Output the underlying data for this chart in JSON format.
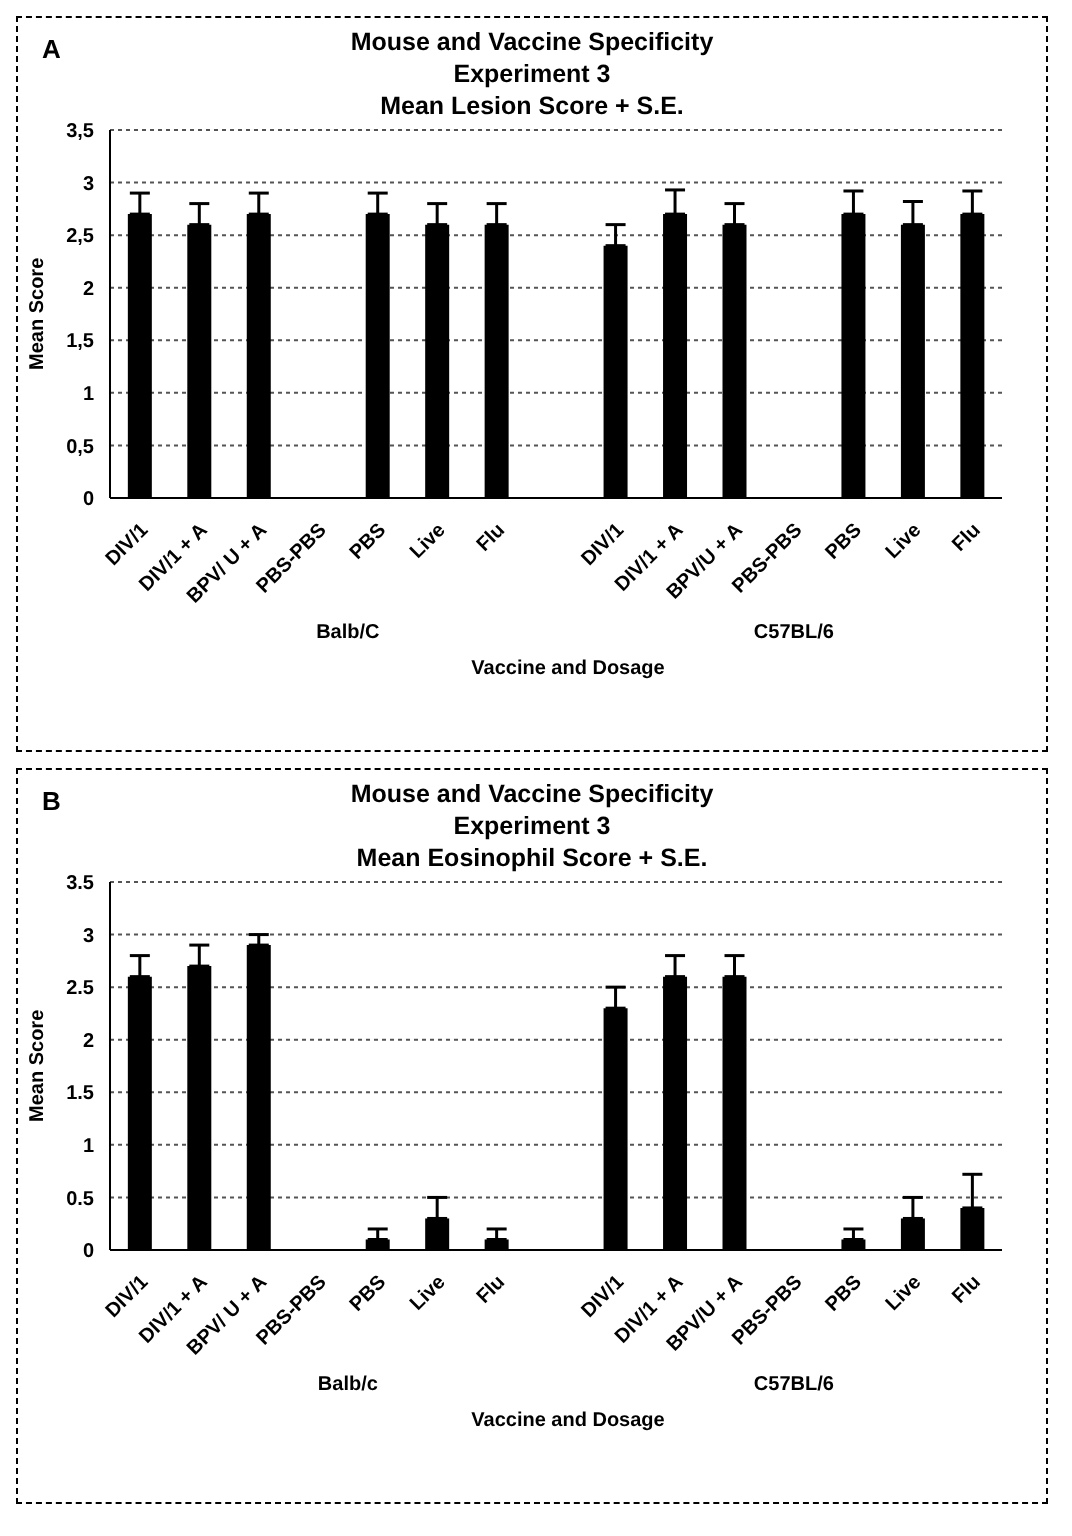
{
  "chart_data": [
    {
      "type": "bar",
      "title": "Mouse and Vaccine Specificity\nExperiment 3\nMean Lesion Score + S.E.",
      "xlabel": "Vaccine and Dosage",
      "ylabel": "Mean Score",
      "categories": [
        "DIV/1",
        "DIV/1 + A",
        "BPV/ U + A",
        "PBS-PBS",
        "PBS",
        "Live",
        "Flu",
        null,
        "DIV/1",
        "DIV/1 + A",
        "BPV/U + A",
        "PBS-PBS",
        "PBS",
        "Live",
        "Flu"
      ],
      "values": [
        2.7,
        2.6,
        2.7,
        0,
        2.7,
        2.6,
        2.6,
        null,
        2.4,
        2.7,
        2.6,
        0,
        2.7,
        2.6,
        2.7
      ],
      "errors": [
        [
          2.7,
          2.9
        ],
        [
          2.6,
          2.8
        ],
        [
          2.7,
          2.9
        ],
        null,
        [
          2.7,
          2.9
        ],
        [
          2.6,
          2.8
        ],
        [
          2.6,
          2.8
        ],
        null,
        [
          2.4,
          2.6
        ],
        [
          2.7,
          2.93
        ],
        [
          2.6,
          2.8
        ],
        null,
        [
          2.7,
          2.92
        ],
        [
          2.6,
          2.82
        ],
        [
          2.7,
          2.92
        ]
      ],
      "color": "#000000",
      "ylim": [
        0,
        3.5
      ],
      "yticks": [
        {
          "value": 0,
          "label": "0"
        },
        {
          "value": 0.5,
          "label": "0,5"
        },
        {
          "value": 1,
          "label": "1"
        },
        {
          "value": 1.5,
          "label": "1,5"
        },
        {
          "value": 2,
          "label": "2"
        },
        {
          "value": 2.5,
          "label": "2,5"
        },
        {
          "value": 3,
          "label": "3"
        },
        {
          "value": 3.5,
          "label": "3,5"
        }
      ],
      "grid": "y",
      "annotations": [
        "A",
        "Balb/C",
        "C57BL/6"
      ]
    },
    {
      "type": "bar",
      "title": "Mouse and Vaccine Specificity\nExperiment 3\nMean Eosinophil Score + S.E.",
      "xlabel": "Vaccine and Dosage",
      "ylabel": "Mean Score",
      "categories": [
        "DIV/1",
        "DIV/1 + A",
        "BPV/ U + A",
        "PBS-PBS",
        "PBS",
        "Live",
        "Flu",
        null,
        "DIV/1",
        "DIV/1 + A",
        "BPV/U + A",
        "PBS-PBS",
        "PBS",
        "Live",
        "Flu"
      ],
      "values": [
        2.6,
        2.7,
        2.9,
        0,
        0.1,
        0.3,
        0.1,
        null,
        2.3,
        2.6,
        2.6,
        0,
        0.1,
        0.3,
        0.4
      ],
      "errors": [
        [
          2.6,
          2.8
        ],
        [
          2.7,
          2.9
        ],
        [
          2.9,
          3.0
        ],
        null,
        [
          0.1,
          0.2
        ],
        [
          0.3,
          0.5
        ],
        [
          0.1,
          0.2
        ],
        null,
        [
          2.3,
          2.5
        ],
        [
          2.6,
          2.8
        ],
        [
          2.6,
          2.8
        ],
        null,
        [
          0.1,
          0.2
        ],
        [
          0.3,
          0.5
        ],
        [
          0.4,
          0.72
        ]
      ],
      "color": "#000000",
      "ylim": [
        0,
        3.5
      ],
      "yticks": [
        0,
        0.5,
        1,
        1.5,
        2,
        2.5,
        3,
        3.5
      ],
      "grid": "y",
      "annotations": [
        "B",
        "Balb/c",
        "C57BL/6"
      ]
    }
  ]
}
